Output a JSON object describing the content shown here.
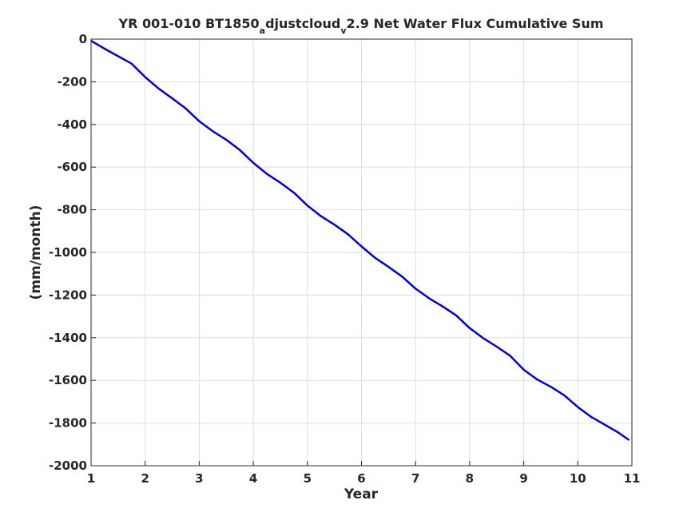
{
  "chart_data": {
    "type": "line",
    "title": {
      "part1": "YR 001-010 BT1850",
      "sub1": "a",
      "part2": "djustcloud",
      "sub2": "v",
      "part3": "2.9 Net Water Flux Cumulative Sum"
    },
    "xlabel": "Year",
    "ylabel": "(mm/month)",
    "xlim": [
      1,
      11
    ],
    "ylim": [
      -2000,
      0
    ],
    "xticks": [
      "1",
      "2",
      "3",
      "4",
      "5",
      "6",
      "7",
      "8",
      "9",
      "10",
      "11"
    ],
    "yticks": [
      "0",
      "-200",
      "-400",
      "-600",
      "-800",
      "-1000",
      "-1200",
      "-1400",
      "-1600",
      "-1800",
      "-2000"
    ],
    "grid": true,
    "series": [
      {
        "color": "#0000cc",
        "x": [
          1.0,
          1.25,
          1.5,
          1.75,
          2.0,
          2.25,
          2.5,
          2.75,
          3.0,
          3.25,
          3.5,
          3.75,
          4.0,
          4.25,
          4.5,
          4.75,
          5.0,
          5.25,
          5.5,
          5.75,
          6.0,
          6.25,
          6.5,
          6.75,
          7.0,
          7.25,
          7.5,
          7.75,
          8.0,
          8.25,
          8.5,
          8.75,
          9.0,
          9.25,
          9.5,
          9.75,
          10.0,
          10.25,
          10.5,
          10.75,
          10.95
        ],
        "y": [
          -8,
          -45,
          -80,
          -115,
          -178,
          -232,
          -278,
          -325,
          -385,
          -432,
          -472,
          -520,
          -580,
          -632,
          -673,
          -720,
          -780,
          -830,
          -870,
          -915,
          -972,
          -1025,
          -1068,
          -1113,
          -1170,
          -1215,
          -1253,
          -1295,
          -1355,
          -1402,
          -1442,
          -1485,
          -1550,
          -1596,
          -1630,
          -1670,
          -1725,
          -1772,
          -1808,
          -1845,
          -1880
        ]
      }
    ]
  }
}
